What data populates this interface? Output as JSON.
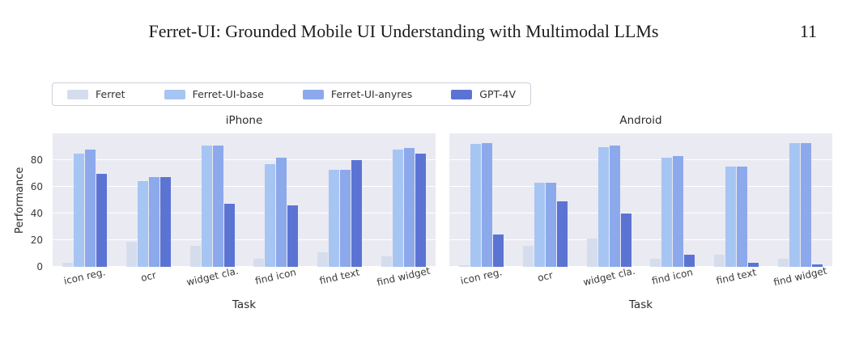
{
  "page": {
    "header_title": "Ferret-UI: Grounded Mobile UI Understanding with Multimodal LLMs",
    "page_number": "11"
  },
  "chart_data": {
    "type": "bar",
    "grouped": true,
    "grid": true,
    "legend_position": "top-left",
    "plot_background": "#eaeaf2",
    "xlabel": "Task",
    "ylabel": "Performance",
    "ylim": [
      0,
      100
    ],
    "yticks": [
      0,
      20,
      40,
      60,
      80
    ],
    "categories": [
      "icon reg.",
      "ocr",
      "widget cla.",
      "find icon",
      "find text",
      "find widget"
    ],
    "series_names": [
      "Ferret",
      "Ferret-UI-base",
      "Ferret-UI-anyres",
      "GPT-4V"
    ],
    "colors": [
      "#d5dded",
      "#a7c5f2",
      "#8ca9ec",
      "#5b74d3"
    ],
    "subplots": [
      {
        "title": "iPhone",
        "series": [
          {
            "name": "Ferret",
            "values": [
              3,
              19,
              16,
              6,
              11,
              8
            ]
          },
          {
            "name": "Ferret-UI-base",
            "values": [
              85,
              64,
              91,
              77,
              73,
              88
            ]
          },
          {
            "name": "Ferret-UI-anyres",
            "values": [
              88,
              67,
              91,
              82,
              73,
              89
            ]
          },
          {
            "name": "GPT-4V",
            "values": [
              70,
              67,
              47,
              46,
              80,
              85
            ]
          }
        ]
      },
      {
        "title": "Android",
        "series": [
          {
            "name": "Ferret",
            "values": [
              1,
              16,
              21,
              6,
              9,
              6
            ]
          },
          {
            "name": "Ferret-UI-base",
            "values": [
              92,
              63,
              90,
              82,
              75,
              93
            ]
          },
          {
            "name": "Ferret-UI-anyres",
            "values": [
              93,
              63,
              91,
              83,
              75,
              93
            ]
          },
          {
            "name": "GPT-4V",
            "values": [
              24,
              49,
              40,
              9,
              3,
              2
            ]
          }
        ]
      }
    ]
  }
}
